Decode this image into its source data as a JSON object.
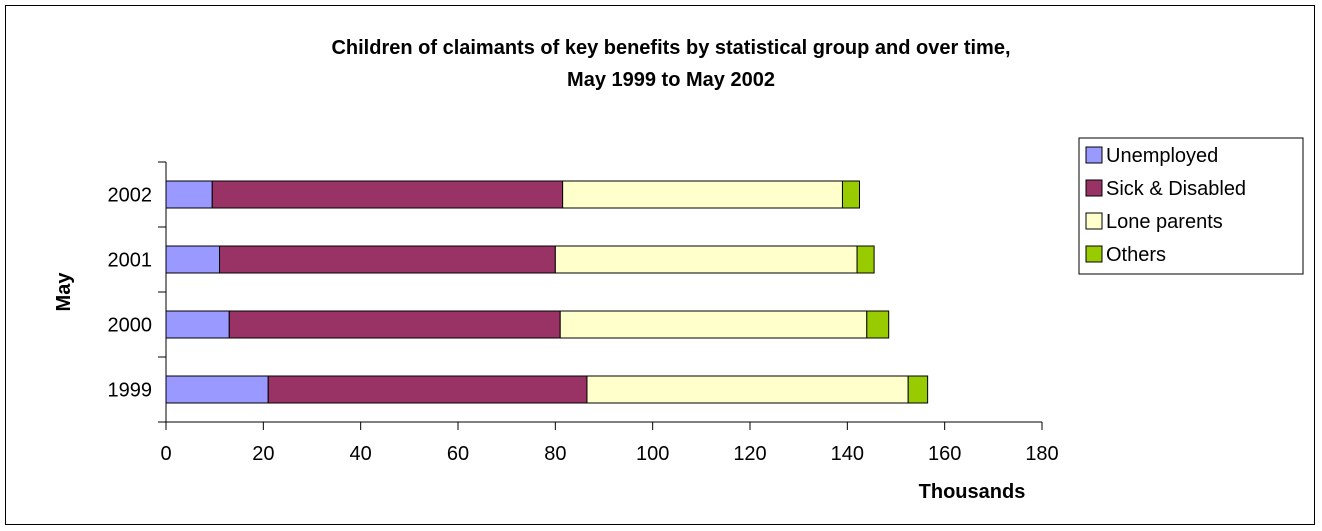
{
  "chart_data": {
    "type": "bar",
    "orientation": "horizontal",
    "stacked": true,
    "title_line1": "Children of claimants of key benefits by statistical group and over time,",
    "title_line2": "May 1999 to May 2002",
    "xlabel": "Thousands",
    "ylabel": "May",
    "xlim": [
      0,
      180
    ],
    "xticks": [
      "0",
      "20",
      "40",
      "60",
      "80",
      "100",
      "120",
      "140",
      "160",
      "180"
    ],
    "categories": [
      "1999",
      "2000",
      "2001",
      "2002"
    ],
    "series": [
      {
        "name": "Unemployed",
        "color": "#9999ff",
        "values": [
          21,
          13,
          11,
          9.5
        ]
      },
      {
        "name": "Sick & Disabled",
        "color": "#993366",
        "values": [
          65.5,
          68,
          69,
          72
        ]
      },
      {
        "name": "Lone parents",
        "color": "#ffffcc",
        "values": [
          66,
          63,
          62,
          57.5
        ]
      },
      {
        "name": "Others",
        "color": "#99cc00",
        "values": [
          4,
          4.5,
          3.5,
          3.5
        ]
      }
    ],
    "legend_position": "right",
    "grid": false
  }
}
